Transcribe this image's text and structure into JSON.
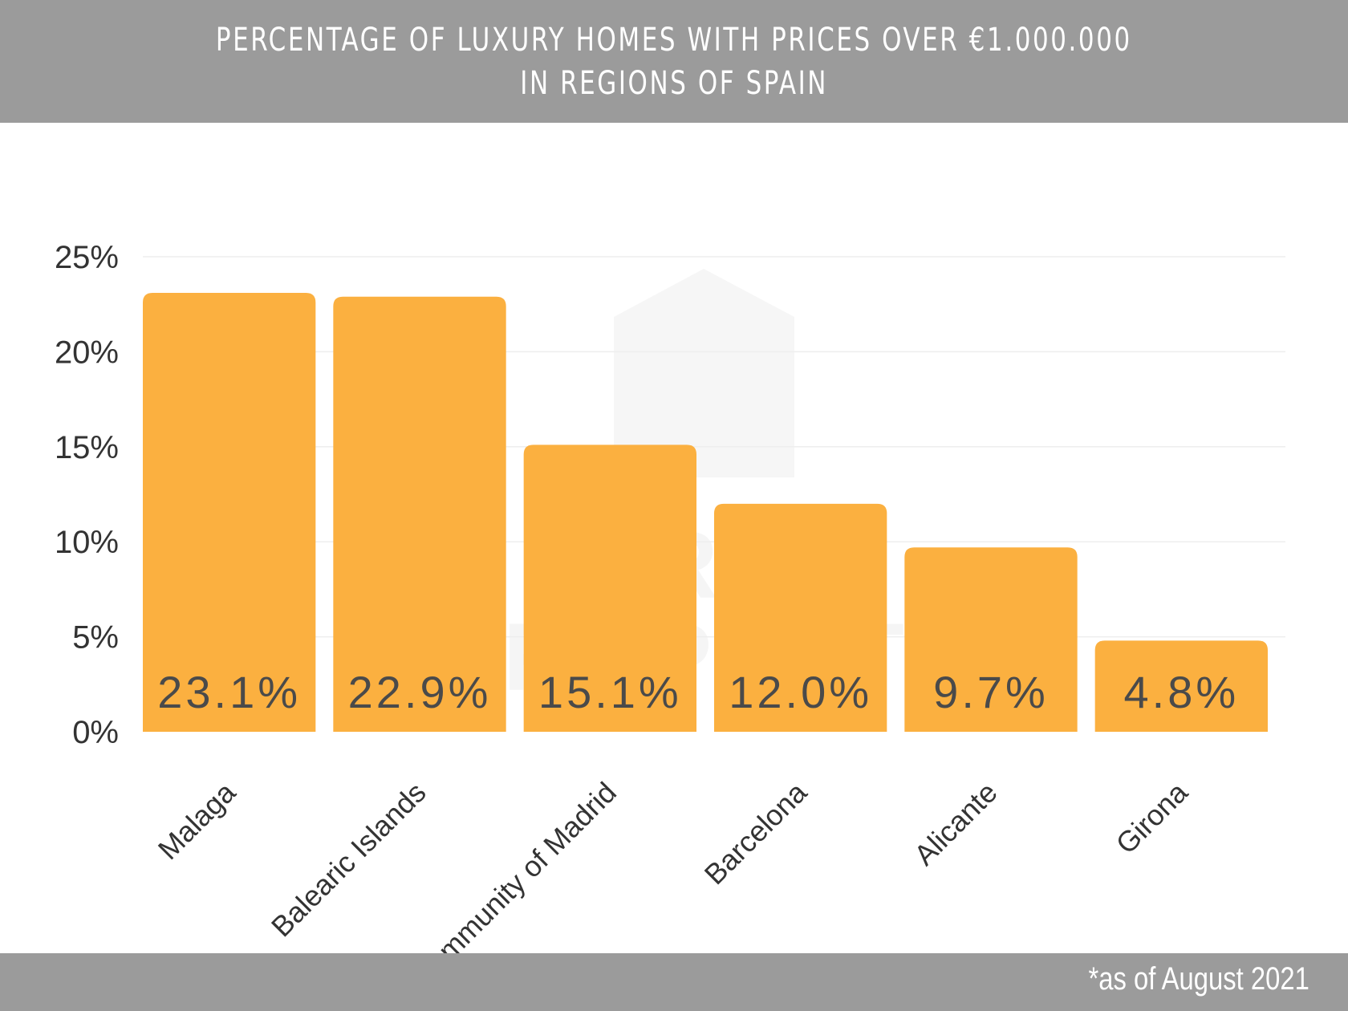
{
  "header": {
    "title_line1": "PERCENTAGE OF LUXURY HOMES WITH PRICES OVER €1.000.000",
    "title_line2": "IN REGIONS OF SPAIN"
  },
  "footer": {
    "note": "*as of August 2021"
  },
  "watermark": {
    "line1": "VIRTO",
    "line2": "PROPERTY"
  },
  "colors": {
    "header_bg": "#9b9b9b",
    "bar": "#fbb040",
    "gridline": "#eeeeee",
    "value_text": "#4a4a4a"
  },
  "chart_data": {
    "type": "bar",
    "title": "PERCENTAGE OF LUXURY HOMES WITH PRICES OVER €1.000.000 IN REGIONS OF SPAIN",
    "categories": [
      "Malaga",
      "Balearic Islands",
      "Community of Madrid",
      "Barcelona",
      "Alicante",
      "Girona"
    ],
    "values": [
      23.1,
      22.9,
      15.1,
      12.0,
      9.7,
      4.8
    ],
    "value_labels": [
      "23.1%",
      "22.9%",
      "15.1%",
      "12.0%",
      "9.7%",
      "4.8%"
    ],
    "yticks": [
      0,
      5,
      10,
      15,
      20,
      25
    ],
    "ytick_labels": [
      "0%",
      "5%",
      "10%",
      "15%",
      "20%",
      "25%"
    ],
    "ylim": [
      0,
      25
    ],
    "xlabel": "",
    "ylabel": "",
    "grid": true,
    "legend": "none"
  }
}
